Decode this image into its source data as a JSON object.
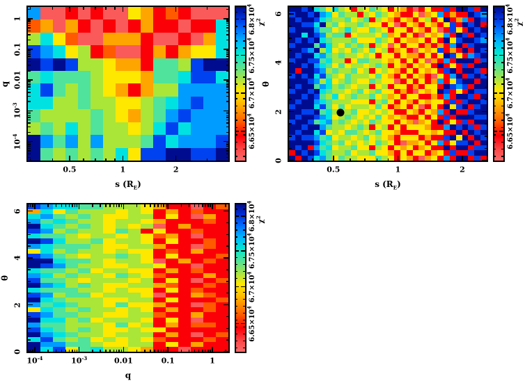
{
  "figure": {
    "description": "three-panel chi-squared heatmap figure",
    "background": "#ffffff"
  },
  "chart_data": {
    "type": "heatmap",
    "palette": {
      "0": "#000c8f",
      "1": "#0041f0",
      "2": "#009cff",
      "3": "#00e2e2",
      "4": "#4fe39b",
      "5": "#aae637",
      "6": "#ffe800",
      "7": "#ffa500",
      "8": "#ff5a00",
      "9": "#fb0007",
      "a": "#fb5a5a"
    },
    "colorbar": {
      "title": "χ^2",
      "gradient_top_to_bottom": [
        "#000c8f 0%",
        "#0030d8 7%",
        "#0069ff 14%",
        "#00b4ff 22%",
        "#00e6d2 30%",
        "#4fe39b 38%",
        "#a0e44e 46%",
        "#ffe800 54%",
        "#ffc400 61%",
        "#ff9100 68%",
        "#ff5a00 75%",
        "#fb0007 84%",
        "#fb4a4a 93%",
        "#fb6a6a 100%"
      ],
      "ticks": [
        {
          "frac_from_top": 0.08,
          "label": "6.8×10^4"
        },
        {
          "frac_from_top": 0.315,
          "label": "6.75×10^4"
        },
        {
          "frac_from_top": 0.56,
          "label": "6.7×10^4"
        },
        {
          "frac_from_top": 0.81,
          "label": "6.65×10^4"
        }
      ]
    },
    "panels": [
      {
        "id": "q-vs-s",
        "x_axis": {
          "label": "s (R_E)",
          "scale": "log",
          "min": 0.29,
          "max": 3.96,
          "major_ticks": [
            {
              "v": 0.5,
              "label": "0.5"
            },
            {
              "v": 1,
              "label": "1"
            },
            {
              "v": 2,
              "label": "2"
            }
          ]
        },
        "y_axis": {
          "label": "q",
          "scale": "log",
          "min": 2.4e-05,
          "max": 2.4,
          "major_ticks": [
            {
              "v": 1,
              "label": "1"
            },
            {
              "v": 0.1,
              "label": "0.1"
            },
            {
              "v": 0.01,
              "label": "0.01"
            },
            {
              "v": 0.001,
              "label": "10^-3"
            },
            {
              "v": 0.0001,
              "label": "10^-4"
            }
          ]
        },
        "grid": {
          "cols": 16,
          "rows": 12,
          "cells": [
            "2aa9a9aa67989aaa",
            "87a79a9a9799a993",
            "5368aa7779aa9a73",
            "1236598aa9797663",
            "0101556779445100",
            "4344456667443113",
            "3145456797552222",
            "3355455665432122",
            "4555545675421222",
            "5453545565313222",
            "0242525554132221",
            "0454545361100110"
          ]
        }
      },
      {
        "id": "theta-vs-s",
        "x_axis": {
          "label": "s (R_E)",
          "scale": "log",
          "min": 0.31,
          "max": 2.6,
          "major_ticks": [
            {
              "v": 0.5,
              "label": "0.5"
            },
            {
              "v": 1,
              "label": "1"
            },
            {
              "v": 2,
              "label": "2"
            }
          ]
        },
        "y_axis": {
          "label": "θ",
          "scale": "linear",
          "min": 0,
          "max": 6.283,
          "major_ticks": [
            {
              "v": 0,
              "label": "0"
            },
            {
              "v": 2,
              "label": "2"
            },
            {
              "v": 4,
              "label": "4"
            },
            {
              "v": 6,
              "label": "6"
            }
          ]
        },
        "marker": {
          "s": 0.54,
          "theta": 1.95,
          "color": "#000000"
        },
        "grid": {
          "cols": 32,
          "rows": 30,
          "cells": [
            "00103463569564569679a96991900190",
            "100102364559564567996a7629799012",
            "01001345546549567967965960972901",
            "00113054655456696a96796796190109",
            "100024465356645696696796a9169010",
            "003012544965556476969a6762901901",
            "01010345554666456967769690610012",
            "1000413564545956a696697979209100",
            "00120536564564659769a67619790901",
            "01003245455656966967796960169210",
            "1001143559644556769696a792900091",
            "00102346465565459679676909691900",
            "09001254554659656796967691090019",
            "10103145645556467969679a69209101",
            "00012536545664566a96969729610090",
            "01004235456559659669796690121900",
            "10010345565465466979a67601969011",
            "00101453654554657696699792900190",
            "01002345556669546967967669191001",
            "100031464655564697696a9690610910",
            "00110435554665656996796729099100",
            "01001236545656467679969691900011",
            "10014325456564566967a76909691900",
            "00100245565459659696667992010191",
            "01003165644565466799966769909010",
            "10112436556546567966697991060901",
            "000013454656564569a7769629611090",
            "01092436554669569676976990900911",
            "90101345546554667969669769199100",
            "090132464556664569679a7692900919"
          ]
        }
      },
      {
        "id": "theta-vs-q",
        "x_axis": {
          "label": "q",
          "scale": "log",
          "min": 7e-05,
          "max": 2.3,
          "major_ticks": [
            {
              "v": 0.0001,
              "label": "10^-4"
            },
            {
              "v": 0.001,
              "label": "10^-3"
            },
            {
              "v": 0.01,
              "label": "0.01"
            },
            {
              "v": 0.1,
              "label": "0.1"
            },
            {
              "v": 1,
              "label": "1"
            }
          ]
        },
        "y_axis": {
          "label": "θ",
          "scale": "linear",
          "min": 0,
          "max": 6.283,
          "major_ticks": [
            {
              "v": 0,
              "label": "0"
            },
            {
              "v": 2,
              "label": "2"
            },
            {
              "v": 4,
              "label": "4"
            },
            {
              "v": 6,
              "label": "6"
            }
          ]
        },
        "grid": {
          "cols": 16,
          "rows": 30,
          "cells": [
            "1233445556799a98",
            "7364555656979899",
            "3245456655969a79",
            "2434556556799989",
            "0345456565a97999",
            "1254556459699899",
            "3445655656879a99",
            "0135546556969989",
            "2344456655799a89",
            "6354556566989799",
            "1245655456969998",
            "0034456556a97989",
            "0124556655699a99",
            "3445465566979899",
            "2354556456899979",
            "1445655565969a98",
            "0235456655789989",
            "3444556566969899",
            "1254465556a99789",
            "0345556655969998",
            "2434556466799a89",
            "6345455656979989",
            "1244556655899799",
            "0335465556969a99",
            "2445556465979889",
            "1345456656699999",
            "0234556555979a98",
            "3145465656899989",
            "0224456655969799",
            "031643556799a999"
          ]
        }
      }
    ]
  }
}
